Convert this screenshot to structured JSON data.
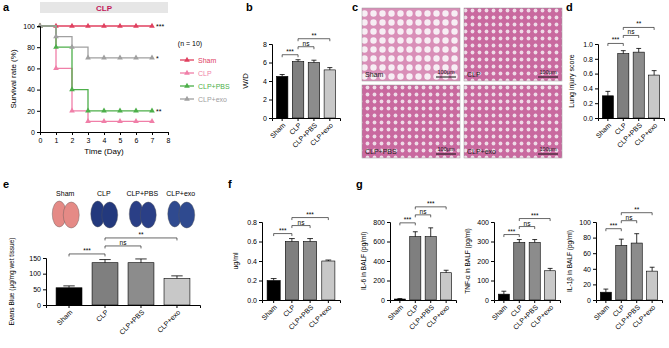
{
  "chart_data": [
    {
      "panel": "a",
      "type": "line",
      "title": "CLP",
      "subtitle": "(n = 10)",
      "x_label": "Time (Day)",
      "y_label": "Survival rate (%)",
      "x": [
        0,
        1,
        2,
        3,
        4,
        5,
        6,
        7
      ],
      "xlim": [
        0,
        8
      ],
      "xticks": [
        0,
        1,
        2,
        3,
        4,
        5,
        6,
        7,
        8
      ],
      "ylim": [
        0,
        100
      ],
      "yticks": [
        0,
        20,
        40,
        60,
        80,
        100
      ],
      "legend": "right",
      "marker": "triangle",
      "line_style": "step",
      "series": [
        {
          "name": "Sham",
          "color": "#e0405f",
          "values": [
            100,
            100,
            100,
            100,
            100,
            100,
            100,
            100
          ],
          "significance": "***"
        },
        {
          "name": "CLP",
          "color": "#f07fa8",
          "values": [
            100,
            60,
            20,
            10,
            10,
            10,
            10,
            10
          ]
        },
        {
          "name": "CLP+PBS",
          "color": "#4daf4a",
          "values": [
            100,
            80,
            40,
            20,
            20,
            20,
            20,
            20
          ],
          "significance": "**"
        },
        {
          "name": "CLP+exo",
          "color": "#a0a0a0",
          "values": [
            100,
            90,
            80,
            70,
            70,
            70,
            70,
            70
          ],
          "significance": "*"
        }
      ]
    },
    {
      "panel": "b",
      "type": "bar",
      "y_label": "W/D",
      "categories": [
        "Sham",
        "CLP",
        "CLP+PBS",
        "CLP+exo"
      ],
      "values": [
        4.5,
        6.1,
        6.0,
        5.2
      ],
      "errors": [
        0.2,
        0.2,
        0.25,
        0.25
      ],
      "colors": [
        "#000000",
        "#7f7f7f",
        "#8c8c8c",
        "#c8c8c8"
      ],
      "ylim": [
        0,
        8
      ],
      "yticks": [
        0,
        2,
        4,
        6,
        8
      ],
      "comparisons": [
        {
          "pair": [
            "Sham",
            "CLP"
          ],
          "label": "***"
        },
        {
          "pair": [
            "CLP",
            "CLP+PBS"
          ],
          "label": "ns"
        },
        {
          "pair": [
            "CLP",
            "CLP+exo"
          ],
          "label": "**"
        }
      ]
    },
    {
      "panel": "c",
      "type": "image",
      "labels": [
        "Sham",
        "CLP",
        "CLP+PBS",
        "CLP+exo"
      ],
      "scale_bar": "100μm"
    },
    {
      "panel": "d",
      "type": "bar",
      "y_label": "Lung injury score",
      "categories": [
        "Sham",
        "CLP",
        "CLP+PBS",
        "CLP+exo"
      ],
      "values": [
        0.3,
        0.87,
        0.89,
        0.58
      ],
      "errors": [
        0.06,
        0.04,
        0.05,
        0.06
      ],
      "colors": [
        "#000000",
        "#7f7f7f",
        "#8c8c8c",
        "#c8c8c8"
      ],
      "ylim": [
        0,
        1
      ],
      "yticks": [
        {
          "value": 0,
          "label": "0.0"
        },
        0.2,
        0.4,
        0.6,
        0.8,
        {
          "value": 1,
          "label": "1.0"
        }
      ],
      "comparisons": [
        {
          "pair": [
            "Sham",
            "CLP"
          ],
          "label": "***"
        },
        {
          "pair": [
            "CLP",
            "CLP+PBS"
          ],
          "label": "ns"
        },
        {
          "pair": [
            "CLP",
            "CLP+exo"
          ],
          "label": "**"
        }
      ]
    },
    {
      "panel": "e",
      "type": "bar",
      "image_labels": [
        "Sham",
        "CLP",
        "CLP+PBS",
        "CLP+exo"
      ],
      "y_label": "Evans Blue (μg/mg wet tissue)",
      "categories": [
        "Sham",
        "CLP",
        "CLP+PBS",
        "CLP+exo"
      ],
      "values": [
        55,
        135,
        135,
        85
      ],
      "errors": [
        6,
        10,
        12,
        8
      ],
      "colors": [
        "#000000",
        "#7f7f7f",
        "#8c8c8c",
        "#c8c8c8"
      ],
      "ylim": [
        0,
        150
      ],
      "yticks": [
        0,
        50,
        100,
        150
      ],
      "comparisons": [
        {
          "pair": [
            "Sham",
            "CLP"
          ],
          "label": "***"
        },
        {
          "pair": [
            "CLP",
            "CLP+PBS"
          ],
          "label": "ns"
        },
        {
          "pair": [
            "CLP",
            "CLP+exo"
          ],
          "label": "**"
        }
      ]
    },
    {
      "panel": "f",
      "type": "bar",
      "y_label": "ug/ml",
      "categories": [
        "Sham",
        "CLP",
        "CLP+PBS",
        "CLP+exo"
      ],
      "values": [
        0.2,
        0.6,
        0.6,
        0.4
      ],
      "errors": [
        0.02,
        0.03,
        0.03,
        0.01
      ],
      "colors": [
        "#000000",
        "#7f7f7f",
        "#8c8c8c",
        "#c8c8c8"
      ],
      "ylim": [
        0,
        0.8
      ],
      "yticks": [
        {
          "value": 0,
          "label": "0.0"
        },
        0.2,
        0.4,
        0.6,
        0.8
      ],
      "comparisons": [
        {
          "pair": [
            "Sham",
            "CLP"
          ],
          "label": "***"
        },
        {
          "pair": [
            "CLP",
            "CLP+PBS"
          ],
          "label": "ns"
        },
        {
          "pair": [
            "CLP",
            "CLP+exo"
          ],
          "label": "***"
        }
      ]
    },
    {
      "panel": "g",
      "type": "bar",
      "y_label": "IL-6 in BALF (pg/ml)",
      "categories": [
        "Sham",
        "CLP",
        "CLP+PBS",
        "CLP+exo"
      ],
      "values": [
        10,
        650,
        650,
        280
      ],
      "errors": [
        5,
        50,
        90,
        25
      ],
      "colors": [
        "#000000",
        "#7f7f7f",
        "#8c8c8c",
        "#c8c8c8"
      ],
      "ylim": [
        0,
        800
      ],
      "yticks": [
        0,
        200,
        400,
        600,
        800
      ],
      "comparisons": [
        {
          "pair": [
            "Sham",
            "CLP"
          ],
          "label": "***"
        },
        {
          "pair": [
            "CLP",
            "CLP+PBS"
          ],
          "label": "ns"
        },
        {
          "pair": [
            "CLP",
            "CLP+exo"
          ],
          "label": "***"
        }
      ]
    },
    {
      "type": "bar",
      "y_label": "TNF-α in BALF (pg/ml)",
      "categories": [
        "Sham",
        "CLP",
        "CLP+PBS",
        "CLP+exo"
      ],
      "values": [
        30,
        295,
        295,
        150
      ],
      "errors": [
        15,
        15,
        15,
        12
      ],
      "colors": [
        "#000000",
        "#7f7f7f",
        "#8c8c8c",
        "#c8c8c8"
      ],
      "ylim": [
        0,
        400
      ],
      "yticks": [
        0,
        100,
        200,
        300,
        400
      ],
      "comparisons": [
        {
          "pair": [
            "Sham",
            "CLP"
          ],
          "label": "***"
        },
        {
          "pair": [
            "CLP",
            "CLP+PBS"
          ],
          "label": "ns"
        },
        {
          "pair": [
            "CLP",
            "CLP+exo"
          ],
          "label": "***"
        }
      ]
    },
    {
      "type": "bar",
      "y_label": "IL-1β in BALF (pg/ml)",
      "categories": [
        "Sham",
        "CLP",
        "CLP+PBS",
        "CLP+exo"
      ],
      "values": [
        10,
        70,
        73,
        37
      ],
      "errors": [
        4,
        8,
        12,
        5
      ],
      "colors": [
        "#000000",
        "#7f7f7f",
        "#8c8c8c",
        "#c8c8c8"
      ],
      "ylim": [
        0,
        100
      ],
      "yticks": [
        0,
        20,
        40,
        60,
        80,
        100
      ],
      "comparisons": [
        {
          "pair": [
            "Sham",
            "CLP"
          ],
          "label": "***"
        },
        {
          "pair": [
            "CLP",
            "CLP+PBS"
          ],
          "label": "ns"
        },
        {
          "pair": [
            "CLP",
            "CLP+exo"
          ],
          "label": "**"
        }
      ]
    }
  ]
}
